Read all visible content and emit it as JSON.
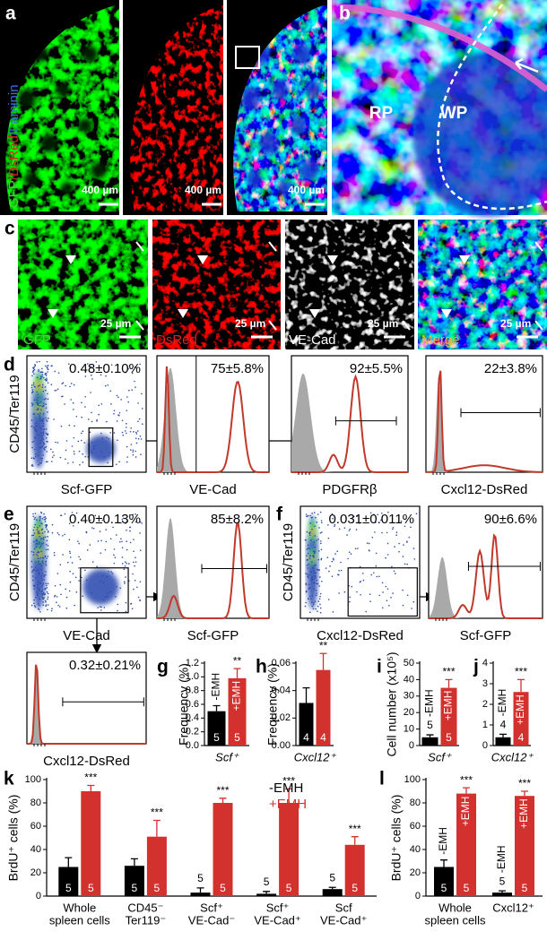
{
  "panel_labels": [
    "a",
    "b",
    "c",
    "d",
    "e",
    "f",
    "g",
    "h",
    "i",
    "j",
    "k",
    "l"
  ],
  "a": {
    "stain_label": [
      "GFP",
      "/DsRed",
      "/Laminin"
    ],
    "scale_bars": [
      "400 µm",
      "400 µm",
      "400 µm"
    ]
  },
  "b": {
    "regions": [
      "RP",
      "WP"
    ]
  },
  "c": {
    "channels": [
      "GFP",
      "DsRed",
      "VE-Cad",
      "Merge"
    ],
    "scale_bars": [
      "25 µm",
      "25 µm",
      "25 µm",
      "25 µm"
    ]
  },
  "flow_plots": [
    {
      "percent": "0.48±0.10%",
      "xlabel": "Scf-GFP",
      "ylabel": "CD45/Ter119"
    },
    {
      "percent": "75±5.8%",
      "xlabel": "VE-Cad"
    },
    {
      "percent": "92±5.5%",
      "xlabel": "PDGFRβ"
    },
    {
      "percent": "22±3.8%",
      "xlabel": "Cxcl12-DsRed"
    },
    {
      "percent": "0.40±0.13%",
      "xlabel": "VE-Cad",
      "ylabel": "CD45/Ter119"
    },
    {
      "percent": "85±8.2%",
      "xlabel": "Scf-GFP"
    },
    {
      "percent": "0.031±0.011%",
      "xlabel": "Cxcl12-DsRed",
      "ylabel": "CD45/Ter119"
    },
    {
      "percent": "90±6.6%",
      "xlabel": "Scf-GFP"
    },
    {
      "percent": "0.32±0.21%",
      "xlabel": "Cxcl12-DsRed"
    }
  ],
  "chart_data": [
    {
      "type": "bar",
      "ylabel": "Frequency (%)",
      "categories": [
        [
          "Scf⁺"
        ]
      ],
      "ylim": [
        0,
        1.2
      ],
      "yticks": [
        {
          "value": 0,
          "label": "0.0"
        },
        0.2,
        0.4,
        0.6,
        0.8,
        {
          "value": 1,
          "label": "1.0"
        },
        1.2
      ],
      "legend": "in-bars",
      "series": [
        {
          "name": "-EMH",
          "color": "#000000",
          "values": [
            0.5
          ],
          "errors": [
            0.08
          ],
          "n": [
            5
          ]
        },
        {
          "name": "+EMH",
          "color": "#d2312d",
          "values": [
            0.98
          ],
          "errors": [
            0.14
          ],
          "n": [
            5
          ]
        }
      ],
      "significance": [
        "**"
      ]
    },
    {
      "type": "bar",
      "ylabel": "Frequency (%)",
      "categories": [
        [
          "Cxcl12⁺"
        ]
      ],
      "ylim": [
        0,
        0.06
      ],
      "yticks": [
        {
          "value": 0,
          "label": "0.00"
        },
        0.02,
        0.04,
        0.06
      ],
      "series": [
        {
          "name": "-EMH",
          "color": "#000000",
          "values": [
            0.031
          ],
          "errors": [
            0.011
          ],
          "n": [
            4
          ]
        },
        {
          "name": "+EMH",
          "color": "#d2312d",
          "values": [
            0.055
          ],
          "errors": [
            0.012
          ],
          "n": [
            4
          ]
        }
      ],
      "significance": [
        "**"
      ]
    },
    {
      "type": "bar",
      "ylabel": "Cell number (x10⁵)",
      "categories": [
        [
          "Scf⁺"
        ]
      ],
      "ylim": [
        0,
        50
      ],
      "yticks": [
        0,
        10,
        20,
        30,
        40,
        50
      ],
      "legend": "in-bars",
      "series": [
        {
          "name": "-EMH",
          "color": "#000000",
          "values": [
            5
          ],
          "errors": [
            1.5
          ],
          "n": [
            5
          ]
        },
        {
          "name": "+EMH",
          "color": "#d2312d",
          "values": [
            35
          ],
          "errors": [
            5
          ],
          "n": [
            5
          ]
        }
      ],
      "significance": [
        "***"
      ]
    },
    {
      "type": "bar",
      "categories": [
        [
          "Cxcl12⁺"
        ]
      ],
      "ylim": [
        0,
        4
      ],
      "yticks": [
        0,
        1,
        2,
        3,
        4
      ],
      "legend": "in-bars",
      "series": [
        {
          "name": "-EMH",
          "color": "#000000",
          "values": [
            0.4
          ],
          "errors": [
            0.15
          ],
          "n": [
            4
          ]
        },
        {
          "name": "+EMH",
          "color": "#d2312d",
          "values": [
            2.6
          ],
          "errors": [
            0.6
          ],
          "n": [
            4
          ]
        }
      ],
      "significance": [
        "***"
      ]
    },
    {
      "type": "bar",
      "ylabel": "BrdU⁺ cells (%)",
      "categories": [
        [
          "Whole",
          "spleen cells"
        ],
        [
          "CD45⁻",
          "Ter119⁻"
        ],
        [
          "Scf⁺",
          "VE-Cad⁻"
        ],
        [
          "Scf⁺",
          "VE-Cad⁺"
        ],
        [
          "Scf",
          "VE-Cad⁺"
        ]
      ],
      "ylim": [
        0,
        100
      ],
      "yticks": [
        0,
        20,
        40,
        60,
        80,
        100
      ],
      "legend": "top-right",
      "series": [
        {
          "name": "-EMH",
          "color": "#000000",
          "values": [
            25,
            26,
            3,
            2,
            6
          ],
          "errors": [
            8,
            6,
            4,
            2,
            1.5
          ],
          "n": [
            5,
            5,
            5,
            5,
            5
          ]
        },
        {
          "name": "+EMH",
          "color": "#d2312d",
          "values": [
            90,
            51,
            80,
            80,
            44
          ],
          "errors": [
            5,
            14,
            4,
            12,
            7
          ],
          "n": [
            5,
            5,
            5,
            5,
            5
          ]
        }
      ],
      "significance": [
        "***",
        "***",
        "***",
        "***",
        "***"
      ]
    },
    {
      "type": "bar",
      "ylabel": "BrdU⁺ cells (%)",
      "categories": [
        [
          "Whole",
          "spleen cells"
        ],
        [
          "Cxcl12⁺"
        ]
      ],
      "ylim": [
        0,
        100
      ],
      "yticks": [
        0,
        20,
        40,
        60,
        80,
        100
      ],
      "legend": "in-bars",
      "series": [
        {
          "name": "-EMH",
          "color": "#000000",
          "values": [
            25,
            3
          ],
          "errors": [
            6,
            1.5
          ],
          "n": [
            5,
            5
          ]
        },
        {
          "name": "+EMH",
          "color": "#d2312d",
          "values": [
            88,
            86
          ],
          "errors": [
            5,
            4
          ],
          "n": [
            5,
            5
          ]
        }
      ],
      "significance": [
        "***",
        "***"
      ]
    }
  ]
}
